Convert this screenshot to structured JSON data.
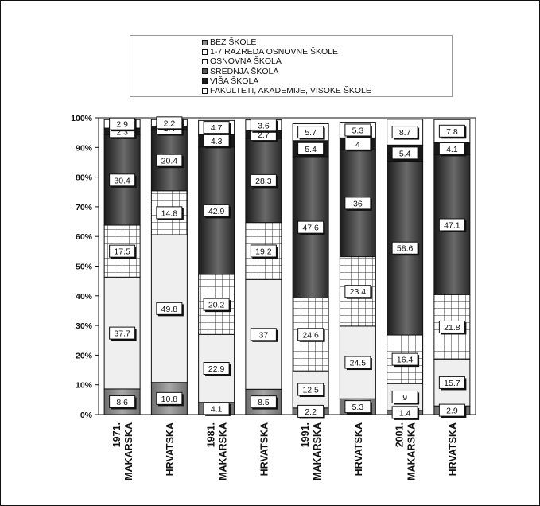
{
  "chart_data": {
    "type": "bar",
    "stacked": true,
    "percent": true,
    "title": "",
    "xlabel": "",
    "ylabel": "",
    "ylim": [
      0,
      100
    ],
    "y_ticks": [
      "0%",
      "10%",
      "20%",
      "30%",
      "40%",
      "50%",
      "60%",
      "70%",
      "80%",
      "90%",
      "100%"
    ],
    "categories": [
      [
        "1971.",
        "MAKARSKA"
      ],
      [
        "HRVATSKA"
      ],
      [
        "1981.",
        "MAKARSKA"
      ],
      [
        "HRVATSKA"
      ],
      [
        "1991.",
        "MAKARSKA"
      ],
      [
        "HRVATSKA"
      ],
      [
        "2001.",
        "MAKARSKA"
      ],
      [
        "HRVATSKA"
      ]
    ],
    "legend_position": "top",
    "series": [
      {
        "name": "BEZ ŠKOLE",
        "pattern": "gradient-gray",
        "color": "#888888",
        "values": [
          8.6,
          10.8,
          4.1,
          8.5,
          2.2,
          5.3,
          1.4,
          2.9
        ]
      },
      {
        "name": "1-7 RAZREDA OSNOVNE ŠKOLE",
        "pattern": "light",
        "color": "#efefef",
        "values": [
          37.7,
          49.8,
          22.9,
          37,
          12.5,
          24.5,
          9,
          15.7
        ]
      },
      {
        "name": "OSNOVNA ŠKOLA",
        "pattern": "grid",
        "color": "#ffffff",
        "values": [
          17.5,
          14.8,
          20.2,
          19.2,
          24.6,
          23.4,
          16.4,
          21.8
        ]
      },
      {
        "name": "SREDNJA ŠKOLA",
        "pattern": "gradient-dark",
        "color": "#3a3a3a",
        "values": [
          30.4,
          20.4,
          42.9,
          28.3,
          47.6,
          36,
          58.6,
          47.1
        ]
      },
      {
        "name": "VIŠA ŠKOLA",
        "pattern": "solid-dark",
        "color": "#1a1a1a",
        "values": [
          2.3,
          1.4,
          4.3,
          2.7,
          5.4,
          4,
          5.4,
          4.1
        ]
      },
      {
        "name": "FAKULTETI, AKADEMIJE, VISOKE ŠKOLE",
        "pattern": "white",
        "color": "#ffffff",
        "values": [
          2.9,
          2.2,
          4.7,
          3.6,
          5.7,
          5.3,
          8.7,
          7.8
        ]
      }
    ]
  }
}
